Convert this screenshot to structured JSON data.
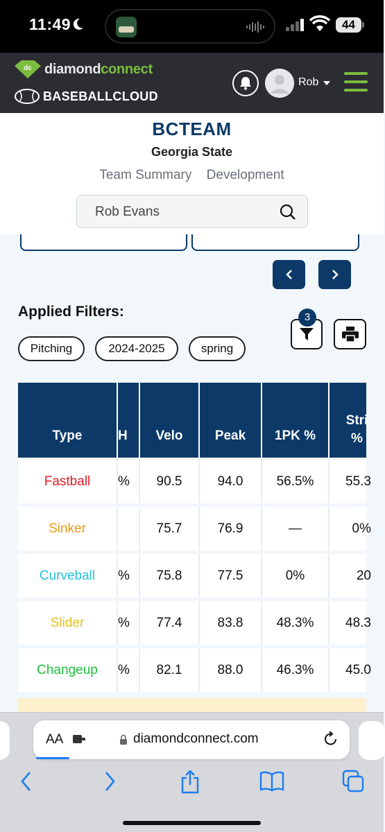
{
  "status_bar": {
    "time": "11:49",
    "battery": "44"
  },
  "header": {
    "brand_primary": "diamond",
    "brand_accent": "connect",
    "brand_secondary": "BASEBALLCLOUD",
    "user_name": "Rob",
    "accent_color": "#7cbd3e"
  },
  "team": {
    "logo_text": "BCTEAM",
    "name": "Georgia State",
    "tabs": [
      "Team Summary",
      "Development"
    ],
    "search_value": "Rob Evans"
  },
  "filters": {
    "heading": "Applied Filters:",
    "chips": [
      "Pitching",
      "2024-2025",
      "spring"
    ],
    "count": "3"
  },
  "table": {
    "headers": [
      "Type",
      "H",
      "Velo",
      "Peak",
      "1PK %",
      "Stri %"
    ],
    "rows": [
      {
        "type": "Fastball",
        "color": "#e01b24",
        "h": "%",
        "velo": "90.5",
        "peak": "94.0",
        "pk1": "56.5%",
        "stri": "55.3"
      },
      {
        "type": "Sinker",
        "color": "#e89a16",
        "h": "",
        "velo": "75.7",
        "peak": "76.9",
        "pk1": "—",
        "stri": "0%"
      },
      {
        "type": "Curveball",
        "color": "#1fc3de",
        "h": "%",
        "velo": "75.8",
        "peak": "77.5",
        "pk1": "0%",
        "stri": "20"
      },
      {
        "type": "Slider",
        "color": "#e6c21c",
        "h": "%",
        "velo": "77.4",
        "peak": "83.8",
        "pk1": "48.3%",
        "stri": "48.3"
      },
      {
        "type": "Changeup",
        "color": "#1fbf3a",
        "h": "%",
        "velo": "82.1",
        "peak": "88.0",
        "pk1": "46.3%",
        "stri": "45.0"
      }
    ]
  },
  "browser": {
    "aa_label": "AA",
    "url": "diamondconnect.com"
  }
}
